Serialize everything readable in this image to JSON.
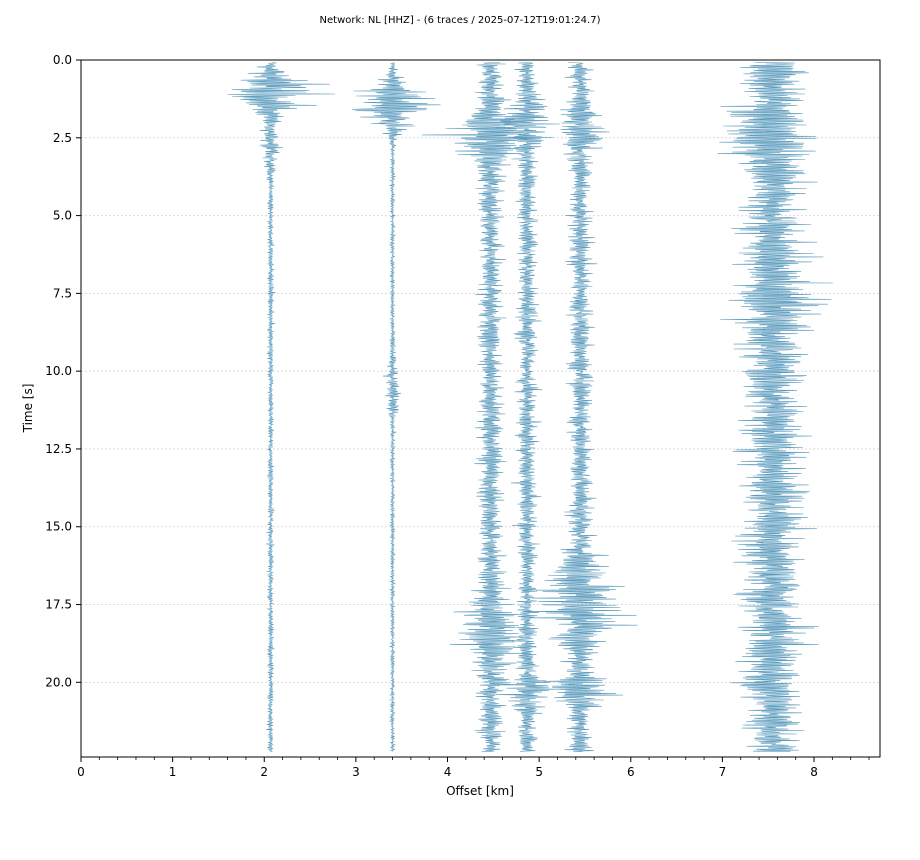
{
  "chart_data": {
    "type": "line",
    "title": "Network: NL [HHZ] - (6 traces / 2025-07-12T19:01:24.7)",
    "xlabel": "Offset [km]",
    "ylabel": "Time [s]",
    "xlim": [
      0,
      8.72
    ],
    "ylim": [
      22.4,
      0
    ],
    "y_inverted": true,
    "x_ticks": [
      0,
      1,
      2,
      3,
      4,
      5,
      6,
      7,
      8
    ],
    "x_tick_labels": [
      "0",
      "1",
      "2",
      "3",
      "4",
      "5",
      "6",
      "7",
      "8"
    ],
    "y_ticks": [
      0,
      2.5,
      5,
      7.5,
      10,
      12.5,
      15,
      17.5,
      20
    ],
    "y_tick_labels": [
      "0.0",
      "2.5",
      "5.0",
      "7.5",
      "10.0",
      "12.5",
      "15.0",
      "17.5",
      "20.0"
    ],
    "grid": "horizontal",
    "trace_color": "#5b9bbd",
    "grid_color": "#d9d9d9",
    "series": [
      {
        "offset_km": 2.07,
        "background_amp_km": 0.04,
        "bursts": [
          {
            "t": 1.0,
            "amp": 0.7,
            "w": 0.6
          },
          {
            "t": 2.5,
            "amp": 0.12,
            "w": 1.0
          }
        ]
      },
      {
        "offset_km": 3.4,
        "background_amp_km": 0.03,
        "bursts": [
          {
            "t": 1.4,
            "amp": 0.6,
            "w": 0.7
          },
          {
            "t": 10.5,
            "amp": 0.08,
            "w": 1.0
          }
        ]
      },
      {
        "offset_km": 4.47,
        "background_amp_km": 0.17,
        "bursts": [
          {
            "t": 2.4,
            "amp": 0.5,
            "w": 0.8
          },
          {
            "t": 18.5,
            "amp": 0.3,
            "w": 1.2
          }
        ]
      },
      {
        "offset_km": 4.87,
        "background_amp_km": 0.14,
        "bursts": [
          {
            "t": 2.0,
            "amp": 0.35,
            "w": 0.6
          },
          {
            "t": 20.3,
            "amp": 0.3,
            "w": 0.5
          }
        ]
      },
      {
        "offset_km": 5.45,
        "background_amp_km": 0.16,
        "bursts": [
          {
            "t": 2.3,
            "amp": 0.25,
            "w": 0.6
          },
          {
            "t": 17.5,
            "amp": 0.55,
            "w": 1.3
          },
          {
            "t": 20.3,
            "amp": 0.55,
            "w": 0.4
          }
        ]
      },
      {
        "offset_km": 7.55,
        "background_amp_km": 0.45,
        "bursts": [
          {
            "t": 2.5,
            "amp": 0.3,
            "w": 0.6
          },
          {
            "t": 7.8,
            "amp": 0.15,
            "w": 1.0
          }
        ]
      }
    ]
  }
}
